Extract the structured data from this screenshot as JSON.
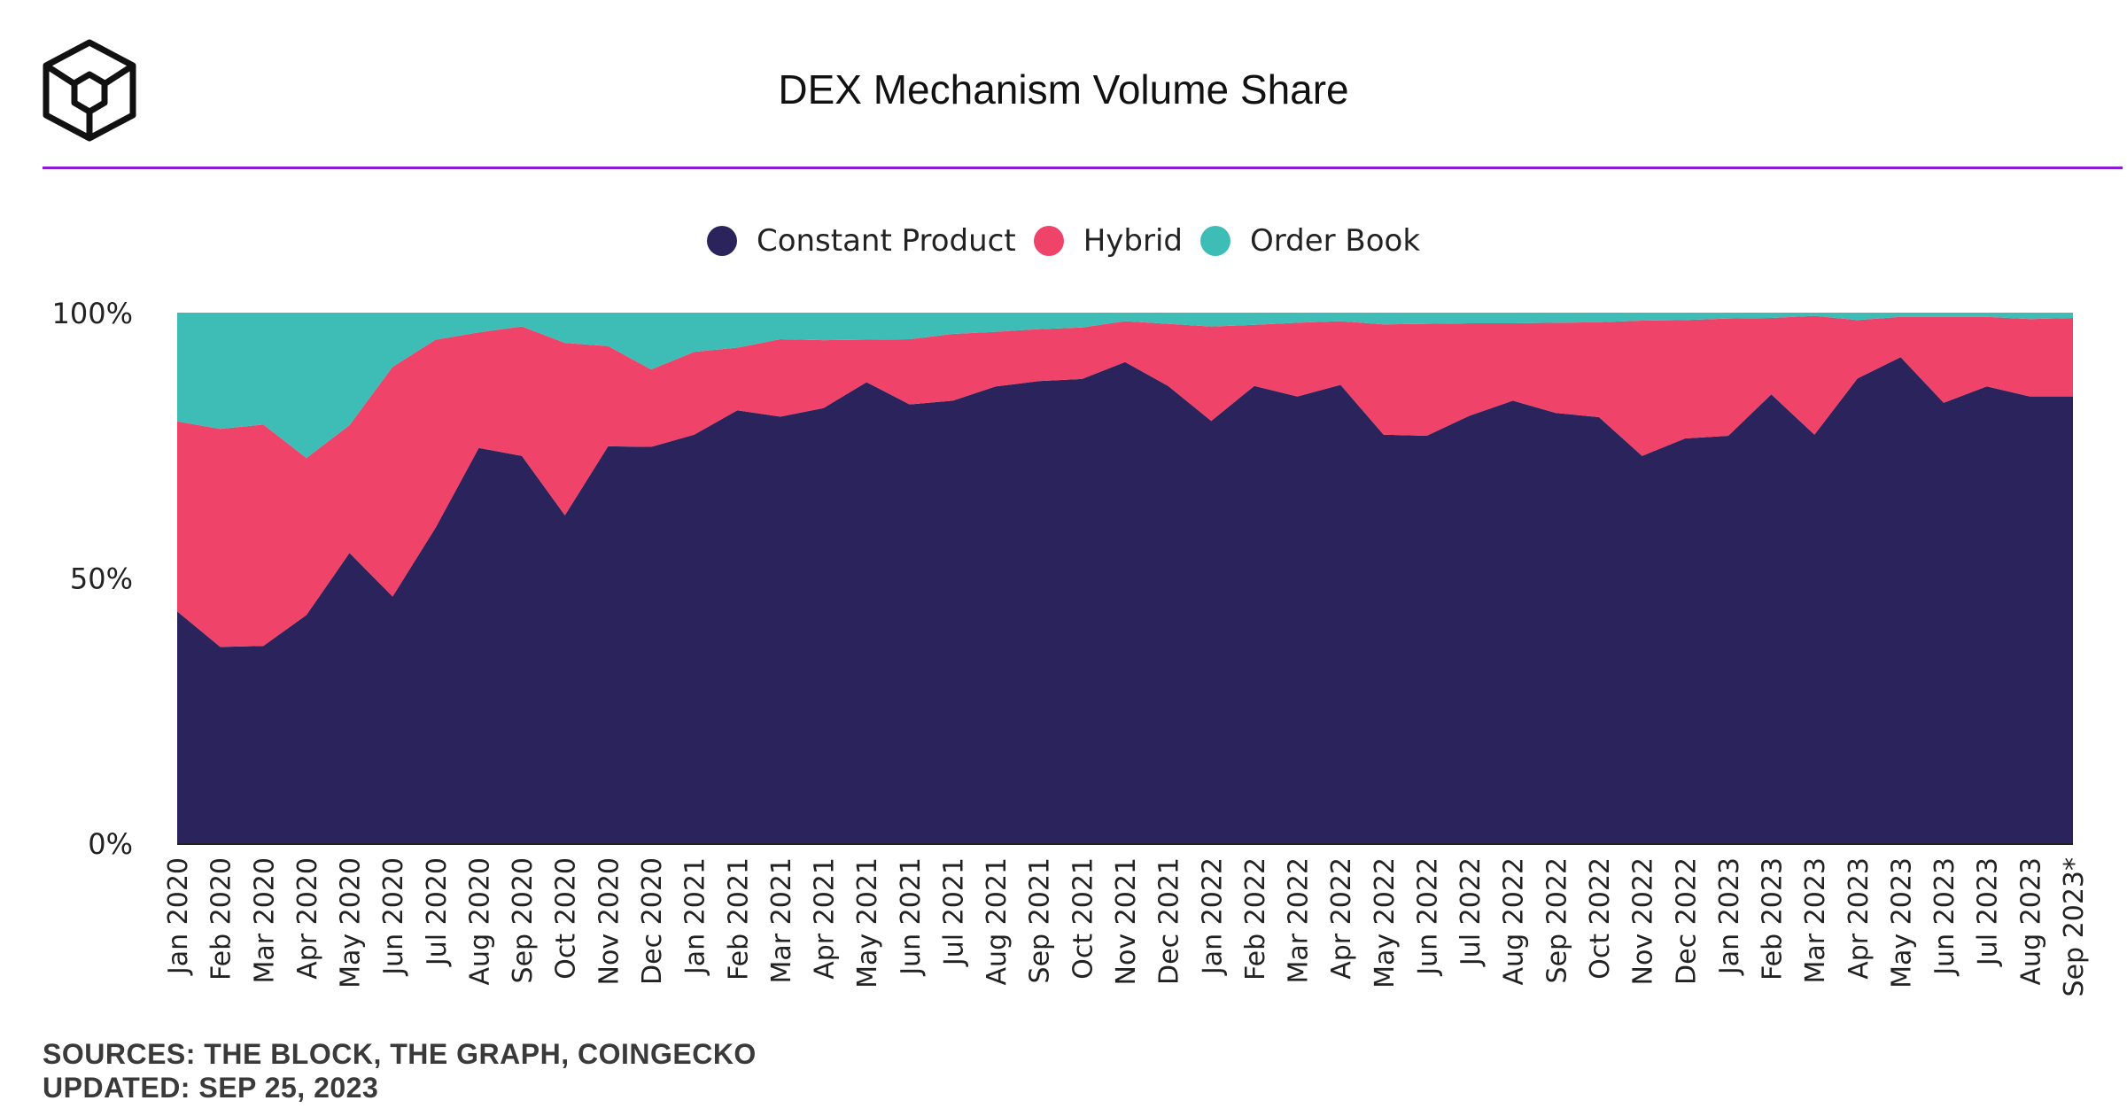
{
  "header": {
    "title": "DEX Mechanism Volume Share",
    "accent_color": "#8a1bd1",
    "logo_icon": "the-block-cube-logo"
  },
  "legend": {
    "items": [
      {
        "label": "Constant Product",
        "color": "#2b245c"
      },
      {
        "label": "Hybrid",
        "color": "#ef4369"
      },
      {
        "label": "Order Book",
        "color": "#3dbdb5"
      }
    ]
  },
  "chart_data": {
    "type": "area",
    "stacked": true,
    "title": "DEX Mechanism Volume Share",
    "xlabel": "",
    "ylabel": "",
    "ylim": [
      0,
      100
    ],
    "y_ticks": [
      "0%",
      "50%",
      "100%"
    ],
    "legend_position": "top-center",
    "categories": [
      "Jan 2020",
      "Feb 2020",
      "Mar 2020",
      "Apr 2020",
      "May 2020",
      "Jun 2020",
      "Jul 2020",
      "Aug 2020",
      "Sep 2020",
      "Oct 2020",
      "Nov 2020",
      "Dec 2020",
      "Jan 2021",
      "Feb 2021",
      "Mar 2021",
      "Apr 2021",
      "May 2021",
      "Jun 2021",
      "Jul 2021",
      "Aug 2021",
      "Sep 2021",
      "Oct 2021",
      "Nov 2021",
      "Dec 2021",
      "Jan 2022",
      "Feb 2022",
      "Mar 2022",
      "Apr 2022",
      "May 2022",
      "Jun 2022",
      "Jul 2022",
      "Aug 2022",
      "Sep 2022",
      "Oct 2022",
      "Nov 2022",
      "Dec 2022",
      "Jan 2023",
      "Feb 2023",
      "Mar 2023",
      "Apr 2023",
      "May 2023",
      "Jun 2023",
      "Jul 2023",
      "Aug 2023",
      "Sep 2023*"
    ],
    "series": [
      {
        "name": "Constant Product",
        "color": "#2b245c",
        "values": [
          43.7,
          37.0,
          37.2,
          43.0,
          54.7,
          46.5,
          59.5,
          74.5,
          73.0,
          61.8,
          74.8,
          74.7,
          77.0,
          81.6,
          80.4,
          82.0,
          86.9,
          82.7,
          83.4,
          86.1,
          87.1,
          87.5,
          90.7,
          86.2,
          79.6,
          86.2,
          84.2,
          86.4,
          77.0,
          76.8,
          80.6,
          83.4,
          81.1,
          80.3,
          73.0,
          76.3,
          76.8,
          84.6,
          77.0,
          87.6,
          91.6,
          83.0,
          86.1,
          84.2,
          84.2
        ]
      },
      {
        "name": "Hybrid",
        "color": "#ef4369",
        "values": [
          35.8,
          41.1,
          41.7,
          29.6,
          24.1,
          43.3,
          35.4,
          21.8,
          24.4,
          32.5,
          18.9,
          14.6,
          15.6,
          11.8,
          14.6,
          12.8,
          8.0,
          12.3,
          12.6,
          10.3,
          9.8,
          9.7,
          7.7,
          11.7,
          17.8,
          11.5,
          13.9,
          12.0,
          20.8,
          21.1,
          17.4,
          14.6,
          17.0,
          17.9,
          25.5,
          22.3,
          22.1,
          14.4,
          22.4,
          11.0,
          7.6,
          16.2,
          13.1,
          14.6,
          14.8
        ]
      },
      {
        "name": "Order Book",
        "color": "#3dbdb5",
        "values": [
          20.5,
          21.9,
          21.1,
          27.4,
          21.2,
          10.2,
          5.1,
          3.7,
          2.6,
          5.7,
          6.3,
          10.7,
          7.4,
          6.6,
          5.0,
          5.2,
          5.1,
          5.0,
          4.0,
          3.6,
          3.1,
          2.8,
          1.6,
          2.1,
          2.6,
          2.3,
          1.9,
          1.6,
          2.2,
          2.1,
          2.0,
          2.0,
          1.9,
          1.8,
          1.5,
          1.4,
          1.1,
          1.0,
          0.6,
          1.4,
          0.8,
          0.8,
          0.8,
          1.2,
          1.0
        ]
      }
    ]
  },
  "footer": {
    "sources": "SOURCES: THE BLOCK, THE GRAPH, COINGECKO",
    "updated": "UPDATED: SEP 25, 2023"
  }
}
